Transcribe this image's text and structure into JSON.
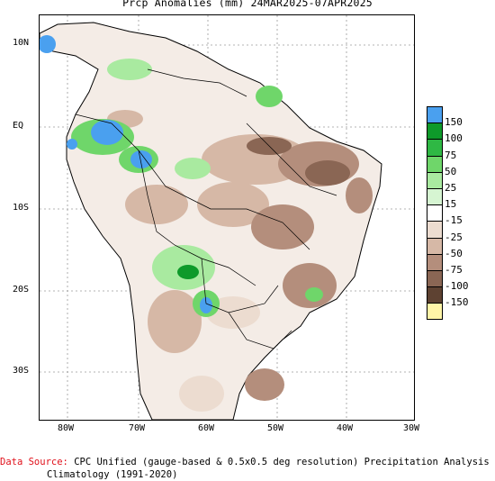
{
  "title": "Prcp Anomalies (mm) 24MAR2025-07APR2025",
  "axes": {
    "lat_ticks": [
      "10N",
      "EQ",
      "10S",
      "20S",
      "30S"
    ],
    "lon_ticks": [
      "80W",
      "70W",
      "60W",
      "50W",
      "40W",
      "30W"
    ]
  },
  "legend": {
    "labels": [
      "150",
      "100",
      "75",
      "50",
      "25",
      "15",
      "-15",
      "-25",
      "-50",
      "-75",
      "-100",
      "-150"
    ],
    "colors": [
      "#4aa0ef",
      "#0e9a2a",
      "#2fb844",
      "#6fd66a",
      "#a9eaa0",
      "#d6f5d2",
      "#ffffff",
      "#ecdcd0",
      "#d6b8a6",
      "#b48e7c",
      "#8a6654",
      "#5e4232",
      "#fff5a8"
    ]
  },
  "footer": {
    "source_label": "Data Source:",
    "source_text": "CPC Unified (gauge-based & 0.5x0.5 deg resolution) Precipitation Analysis",
    "climatology": "Climatology (1991-2020)"
  },
  "colors": {
    "wet_strong": "#4aa0ef",
    "wet": "#2fb844",
    "dry": "#b48e7c",
    "dry_strong": "#5e4232"
  }
}
